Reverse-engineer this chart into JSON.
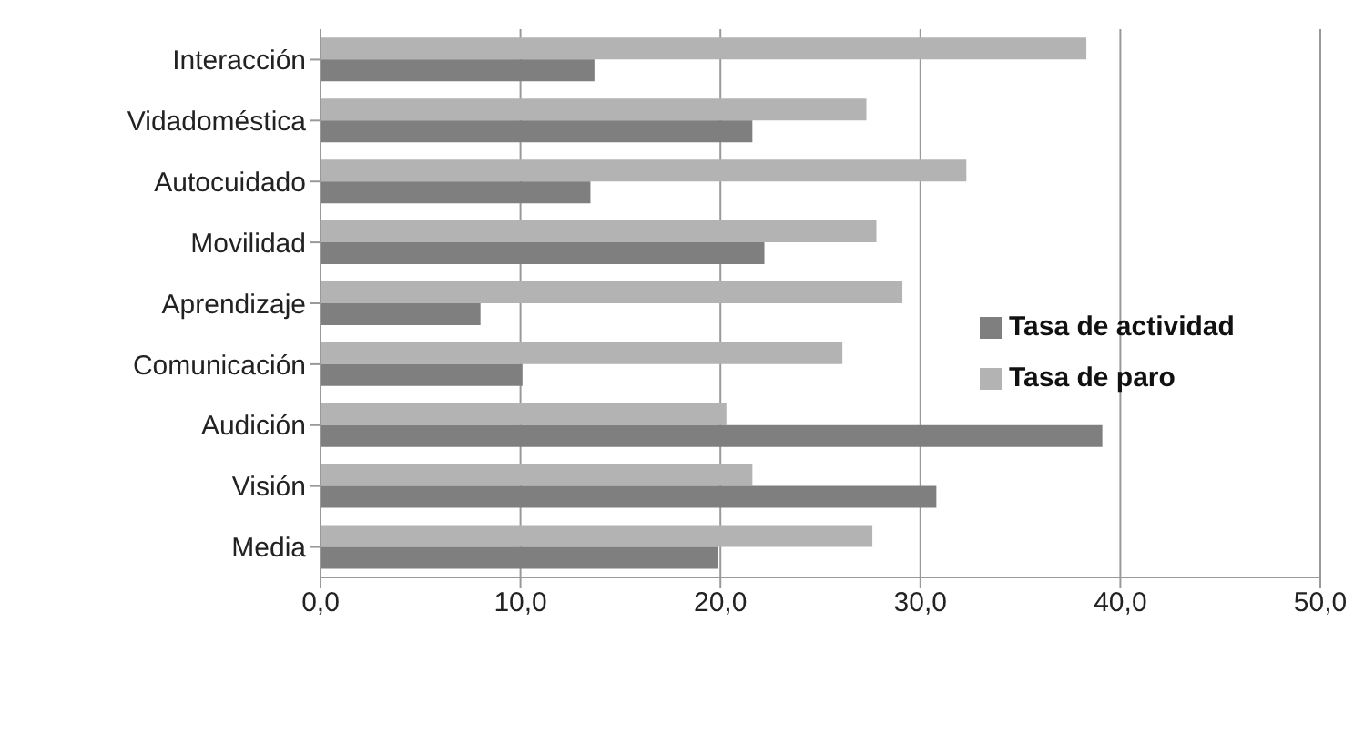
{
  "chart_data": {
    "type": "bar",
    "orientation": "horizontal",
    "categories": [
      "Interacción",
      "Vidadoméstica",
      "Autocuidado",
      "Movilidad",
      "Aprendizaje",
      "Comunicación",
      "Audición",
      "Visión",
      "Media"
    ],
    "series": [
      {
        "name": "Tasa de paro",
        "color": "#b3b3b3",
        "values": [
          38.3,
          27.3,
          32.3,
          27.8,
          29.1,
          26.1,
          20.3,
          21.6,
          27.6
        ]
      },
      {
        "name": "Tasa de actividad",
        "color": "#7f7f7f",
        "values": [
          13.7,
          21.6,
          13.5,
          22.2,
          8.0,
          10.1,
          39.1,
          30.8,
          19.9
        ]
      }
    ],
    "xlim": [
      0,
      50
    ],
    "xticks": [
      {
        "value": 0,
        "label": "0,0"
      },
      {
        "value": 10,
        "label": "10,0"
      },
      {
        "value": 20,
        "label": "20,0"
      },
      {
        "value": 30,
        "label": "30,0"
      },
      {
        "value": 40,
        "label": "40,0"
      },
      {
        "value": 50,
        "label": "50,0"
      }
    ],
    "grid": "x",
    "legend": "right"
  }
}
